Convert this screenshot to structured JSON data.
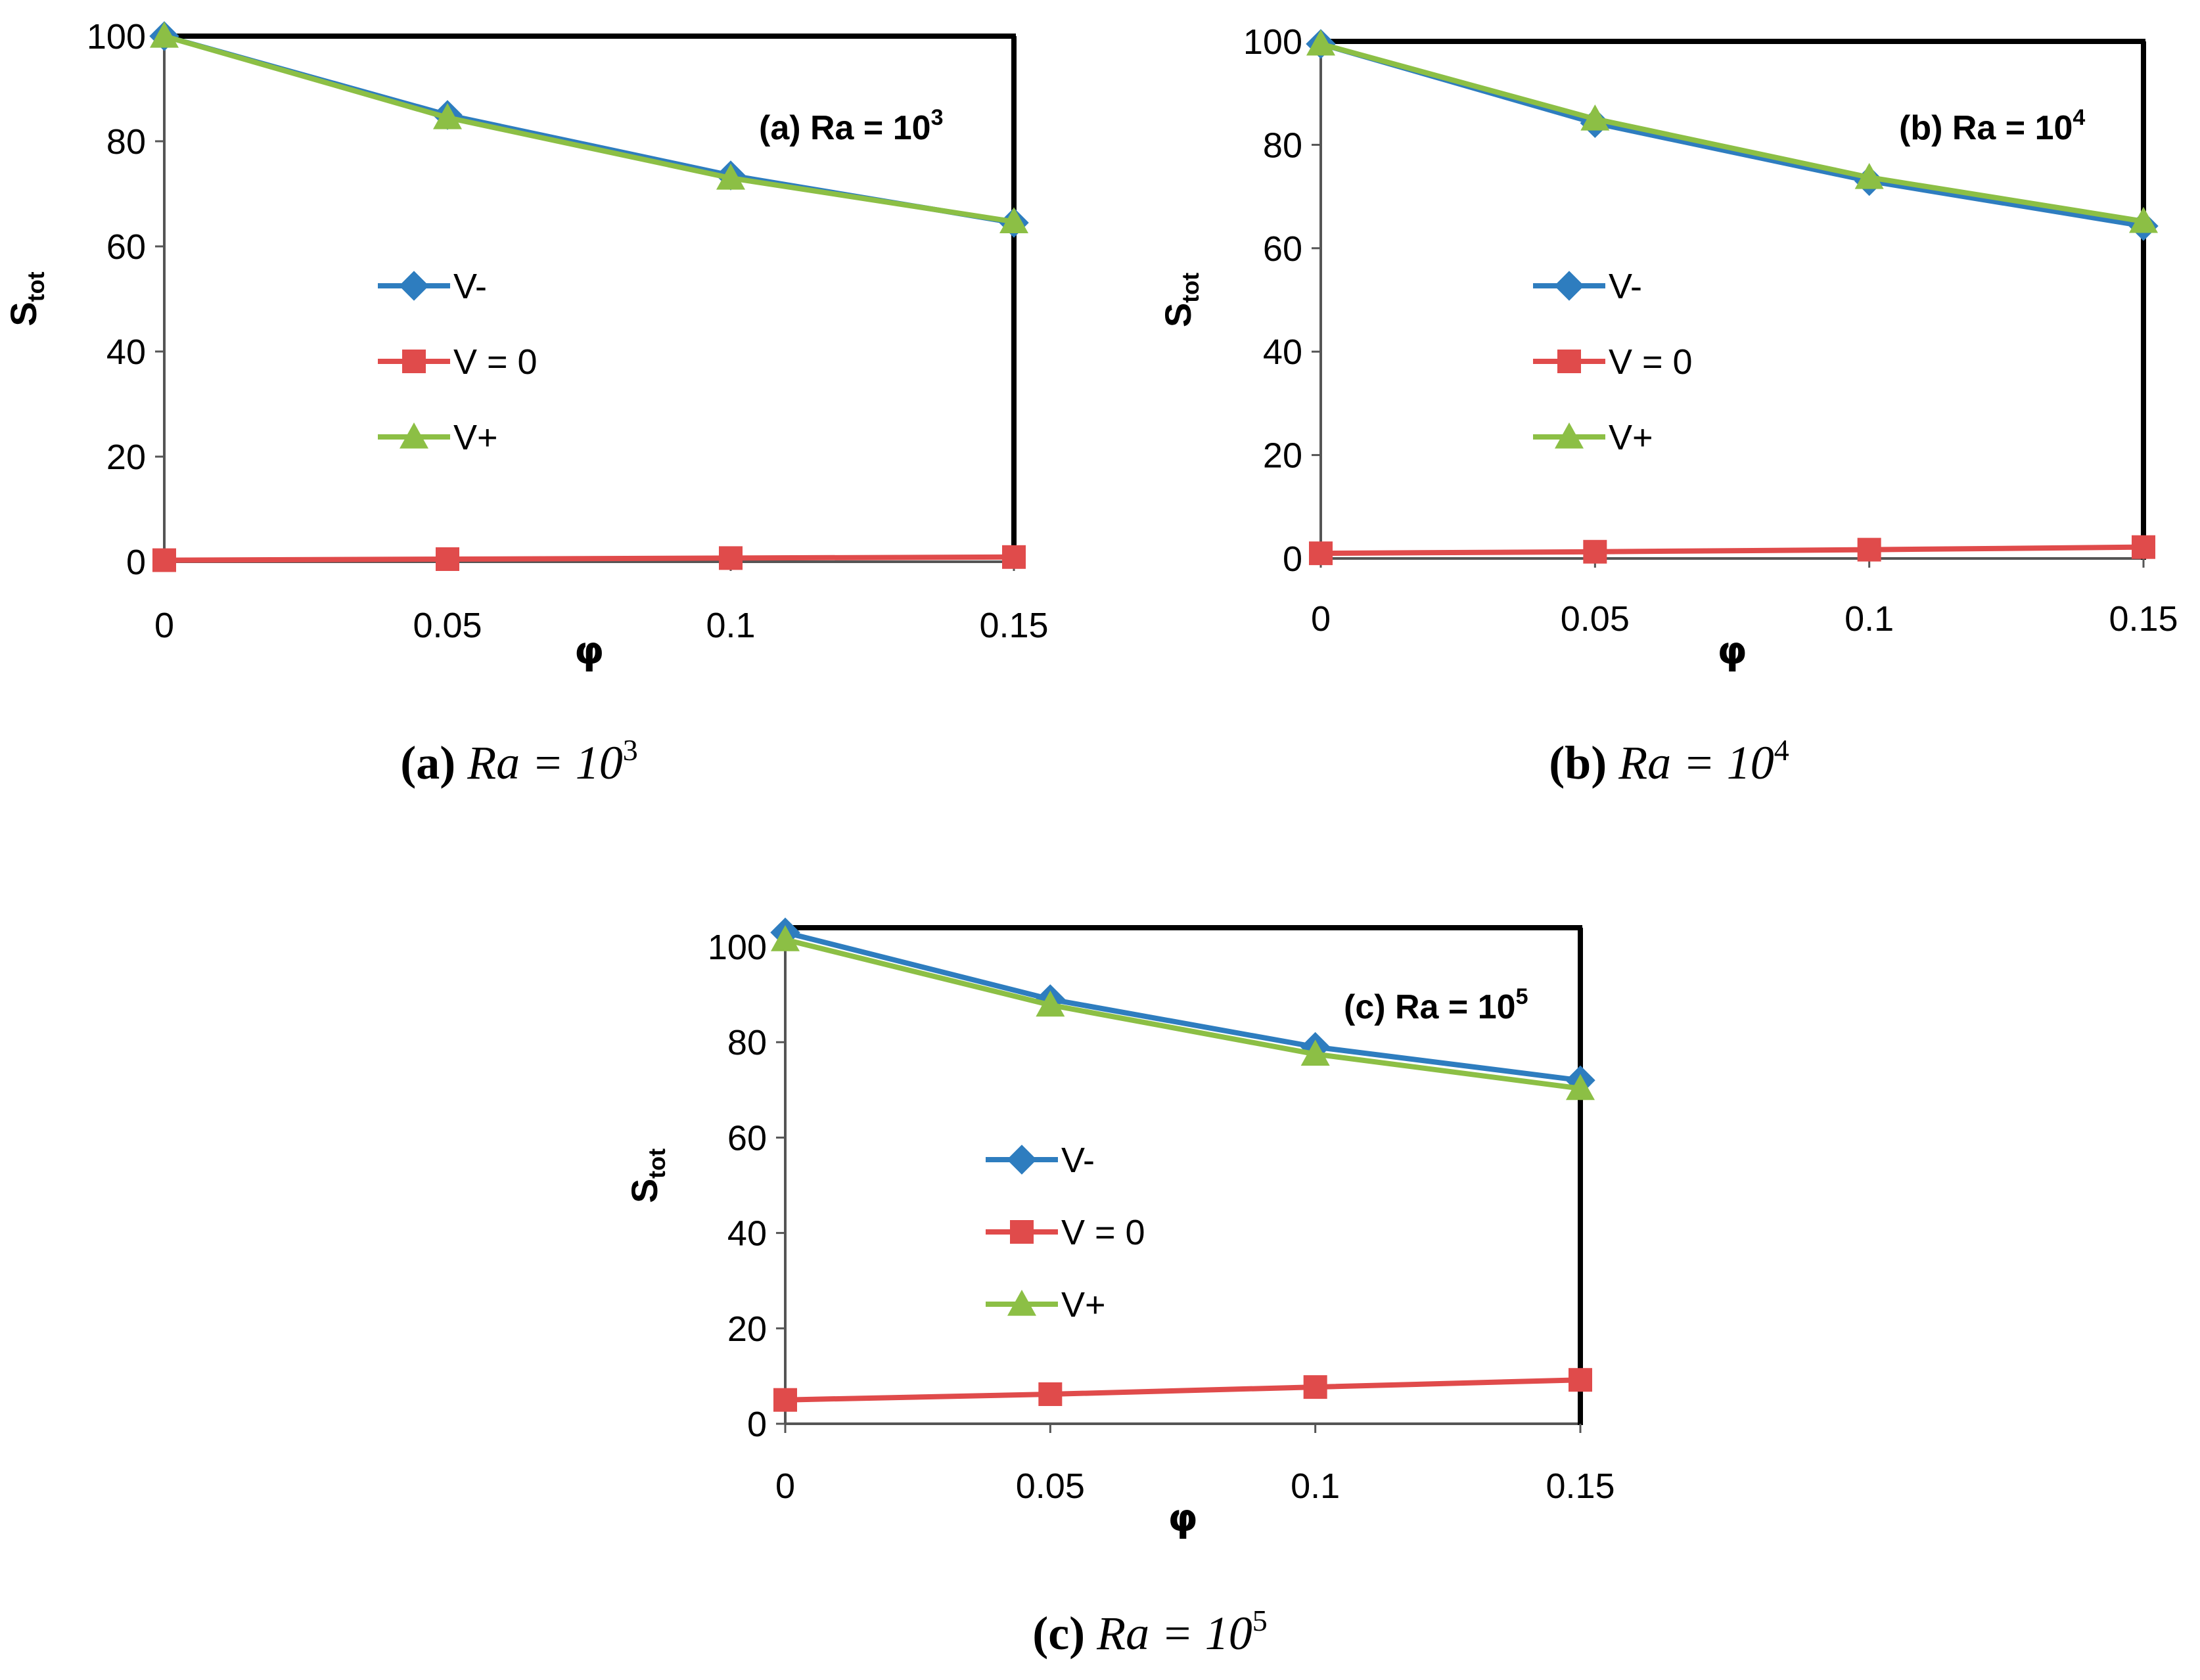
{
  "colors": {
    "v_minus": "#2E7DBF",
    "v_zero": "#E04B4B",
    "v_plus": "#8CBF45",
    "frame": "#000000"
  },
  "chart_data": [
    {
      "type": "line",
      "title": "(a) Ra = 10",
      "title_sup": "3",
      "ylabel": "S",
      "ylabel_sub": "tot",
      "xlabel": "φ",
      "x": [
        0,
        0.05,
        0.1,
        0.15
      ],
      "x_tick_labels": [
        "0",
        "0.05",
        "0.1",
        "0.15"
      ],
      "ylim": [
        0,
        100
      ],
      "y_ticks": [
        0,
        20,
        40,
        60,
        80,
        100
      ],
      "series": [
        {
          "name": "V-",
          "marker": "diamond",
          "values": [
            100,
            85,
            73.5,
            64.5
          ]
        },
        {
          "name": "V = 0",
          "marker": "square",
          "values": [
            0.3,
            0.5,
            0.7,
            0.9
          ]
        },
        {
          "name": "V+",
          "marker": "triangle",
          "values": [
            100,
            84.5,
            73,
            64.7
          ]
        }
      ],
      "caption_label": "(a)",
      "caption_eq": "Ra = 10",
      "caption_sup": "3"
    },
    {
      "type": "line",
      "title": "(b) Ra = 10",
      "title_sup": "4",
      "ylabel": "S",
      "ylabel_sub": "tot",
      "xlabel": "φ",
      "x": [
        0,
        0.05,
        0.1,
        0.15
      ],
      "x_tick_labels": [
        "0",
        "0.05",
        "0.1",
        "0.15"
      ],
      "ylim": [
        0,
        100
      ],
      "y_ticks": [
        0,
        20,
        40,
        60,
        80,
        100
      ],
      "series": [
        {
          "name": "V-",
          "marker": "diamond",
          "values": [
            99.5,
            84.2,
            73,
            64.3
          ]
        },
        {
          "name": "V = 0",
          "marker": "square",
          "values": [
            1,
            1.3,
            1.7,
            2.2
          ]
        },
        {
          "name": "V+",
          "marker": "triangle",
          "values": [
            99.5,
            85,
            73.7,
            65.2
          ]
        }
      ],
      "caption_label": "(b)",
      "caption_eq": "Ra = 10",
      "caption_sup": "4"
    },
    {
      "type": "line",
      "title": "(c) Ra = 10",
      "title_sup": "5",
      "ylabel": "S",
      "ylabel_sub": "tot",
      "xlabel": "φ",
      "x": [
        0,
        0.05,
        0.1,
        0.15
      ],
      "x_tick_labels": [
        "0",
        "0.05",
        "0.1",
        "0.15"
      ],
      "ylim": [
        0,
        104
      ],
      "y_ticks": [
        0,
        20,
        40,
        60,
        80,
        100
      ],
      "series": [
        {
          "name": "V-",
          "marker": "diamond",
          "values": [
            103,
            89,
            79,
            72
          ]
        },
        {
          "name": "V = 0",
          "marker": "square",
          "values": [
            5,
            6.2,
            7.7,
            9.2
          ]
        },
        {
          "name": "V+",
          "marker": "triangle",
          "values": [
            101.5,
            87.8,
            77.5,
            70.3
          ]
        }
      ],
      "caption_label": "(c)",
      "caption_eq": "Ra = 10",
      "caption_sup": "5"
    }
  ]
}
